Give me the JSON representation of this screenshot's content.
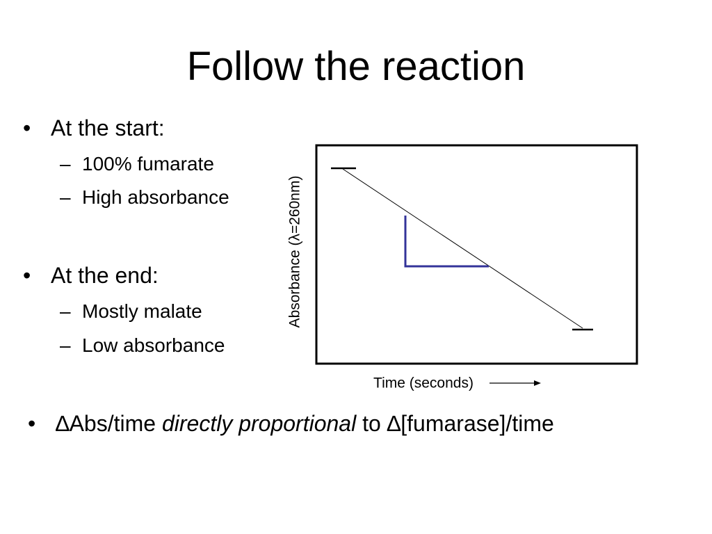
{
  "title": "Follow the reaction",
  "bullets": [
    {
      "text": "At the start:",
      "subs": [
        "100% fumarate",
        "High absorbance"
      ]
    },
    {
      "text": "At the end:",
      "subs": [
        "Mostly malate",
        "Low absorbance"
      ]
    }
  ],
  "last_bullet": {
    "part1": "∆Abs/time",
    "emphasis": "directly proportional",
    "part2": "to",
    "part3": "∆[fumarase]/time"
  },
  "diagram": {
    "y_label": "Absorbance (λ=260nm)",
    "x_label": "Time (seconds)"
  }
}
